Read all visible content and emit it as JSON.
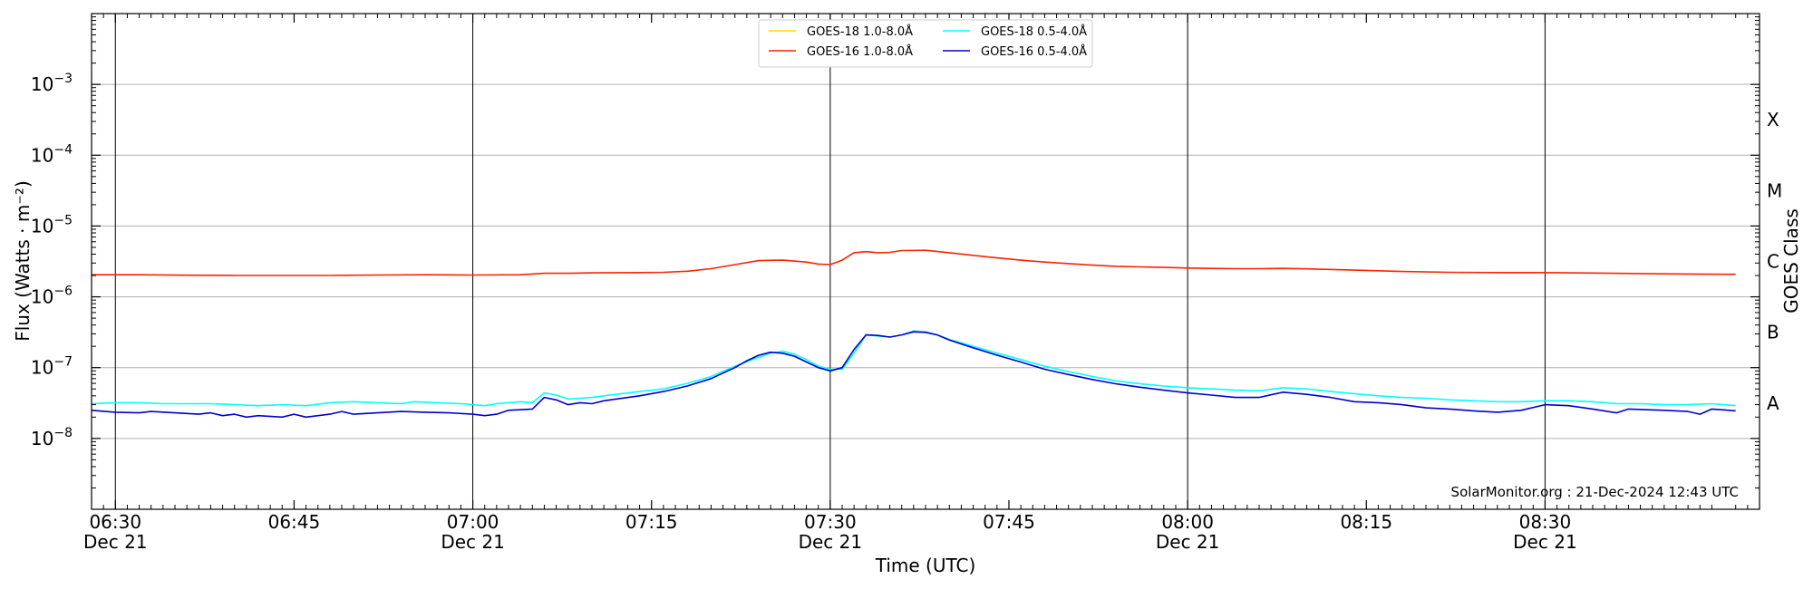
{
  "chart_data": {
    "type": "line",
    "title": "",
    "xlabel": "Time (UTC)",
    "ylabel": "Flux (Watts · m⁻²)",
    "ylabel_right": "GOES Class",
    "yscale": "log",
    "xlim": [
      "06:28",
      "08:48"
    ],
    "ylim": [
      1e-09,
      0.01
    ],
    "grid": "horizontal at decades",
    "legend_placement": "top-center",
    "credit": "SolarMonitor.org : 21-Dec-2024 12:43 UTC",
    "x_ticks": [
      {
        "time": "06:30",
        "label": "06:30",
        "sublabel": "Dec 21"
      },
      {
        "time": "06:45",
        "label": "06:45",
        "sublabel": ""
      },
      {
        "time": "07:00",
        "label": "07:00",
        "sublabel": "Dec 21"
      },
      {
        "time": "07:15",
        "label": "07:15",
        "sublabel": ""
      },
      {
        "time": "07:30",
        "label": "07:30",
        "sublabel": "Dec 21"
      },
      {
        "time": "07:45",
        "label": "07:45",
        "sublabel": ""
      },
      {
        "time": "08:00",
        "label": "08:00",
        "sublabel": "Dec 21"
      },
      {
        "time": "08:15",
        "label": "08:15",
        "sublabel": ""
      },
      {
        "time": "08:30",
        "label": "08:30",
        "sublabel": "Dec 21"
      }
    ],
    "vlines": [
      "06:30",
      "07:00",
      "07:30",
      "08:00",
      "08:30"
    ],
    "y_ticks": [
      {
        "value": 1e-08,
        "base": "10",
        "exp": "−8"
      },
      {
        "value": 1e-07,
        "base": "10",
        "exp": "−7"
      },
      {
        "value": 1e-06,
        "base": "10",
        "exp": "−6"
      },
      {
        "value": 1e-05,
        "base": "10",
        "exp": "−5"
      },
      {
        "value": 0.0001,
        "base": "10",
        "exp": "−4"
      },
      {
        "value": 0.001,
        "base": "10",
        "exp": "−3"
      }
    ],
    "goes_classes": [
      {
        "label": "A",
        "value": 3.16e-08
      },
      {
        "label": "B",
        "value": 3.16e-07
      },
      {
        "label": "C",
        "value": 3.16e-06
      },
      {
        "label": "M",
        "value": 3.16e-05
      },
      {
        "label": "X",
        "value": 0.000316
      }
    ],
    "series": [
      {
        "name": "GOES-18 1.0-8.0Å",
        "color": "#ffd700",
        "points": []
      },
      {
        "name": "GOES-18 0.5-4.0Å",
        "color": "#00ffff",
        "points": [
          [
            "06:28",
            3.1e-08
          ],
          [
            "06:30",
            3.2e-08
          ],
          [
            "06:32",
            3.2e-08
          ],
          [
            "06:34",
            3.1e-08
          ],
          [
            "06:36",
            3.1e-08
          ],
          [
            "06:38",
            3.1e-08
          ],
          [
            "06:40",
            3e-08
          ],
          [
            "06:42",
            2.9e-08
          ],
          [
            "06:44",
            3e-08
          ],
          [
            "06:46",
            2.9e-08
          ],
          [
            "06:48",
            3.2e-08
          ],
          [
            "06:50",
            3.3e-08
          ],
          [
            "06:52",
            3.2e-08
          ],
          [
            "06:54",
            3.1e-08
          ],
          [
            "06:55",
            3.3e-08
          ],
          [
            "06:57",
            3.2e-08
          ],
          [
            "06:59",
            3.1e-08
          ],
          [
            "07:00",
            3e-08
          ],
          [
            "07:01",
            2.9e-08
          ],
          [
            "07:02",
            3.1e-08
          ],
          [
            "07:04",
            3.3e-08
          ],
          [
            "07:05",
            3.2e-08
          ],
          [
            "07:06",
            4.4e-08
          ],
          [
            "07:07",
            4.1e-08
          ],
          [
            "07:08",
            3.6e-08
          ],
          [
            "07:10",
            3.8e-08
          ],
          [
            "07:12",
            4.2e-08
          ],
          [
            "07:14",
            4.6e-08
          ],
          [
            "07:16",
            5e-08
          ],
          [
            "07:18",
            6e-08
          ],
          [
            "07:20",
            7.5e-08
          ],
          [
            "07:22",
            1.05e-07
          ],
          [
            "07:24",
            1.4e-07
          ],
          [
            "07:25",
            1.6e-07
          ],
          [
            "07:26",
            1.7e-07
          ],
          [
            "07:27",
            1.55e-07
          ],
          [
            "07:28",
            1.3e-07
          ],
          [
            "07:29",
            1.05e-07
          ],
          [
            "07:30",
            9.5e-08
          ],
          [
            "07:31",
            9.5e-08
          ],
          [
            "07:32",
            1.6e-07
          ],
          [
            "07:33",
            2.9e-07
          ],
          [
            "07:34",
            2.8e-07
          ],
          [
            "07:35",
            2.7e-07
          ],
          [
            "07:36",
            2.9e-07
          ],
          [
            "07:37",
            3.3e-07
          ],
          [
            "07:38",
            3.2e-07
          ],
          [
            "07:39",
            2.9e-07
          ],
          [
            "07:40",
            2.5e-07
          ],
          [
            "07:42",
            2e-07
          ],
          [
            "07:44",
            1.6e-07
          ],
          [
            "07:46",
            1.3e-07
          ],
          [
            "07:48",
            1.05e-07
          ],
          [
            "07:50",
            8.8e-08
          ],
          [
            "07:52",
            7.5e-08
          ],
          [
            "07:54",
            6.5e-08
          ],
          [
            "07:56",
            5.9e-08
          ],
          [
            "07:58",
            5.5e-08
          ],
          [
            "08:00",
            5.2e-08
          ],
          [
            "08:02",
            5e-08
          ],
          [
            "08:04",
            4.8e-08
          ],
          [
            "08:06",
            4.7e-08
          ],
          [
            "08:08",
            5.2e-08
          ],
          [
            "08:10",
            5e-08
          ],
          [
            "08:12",
            4.6e-08
          ],
          [
            "08:14",
            4.3e-08
          ],
          [
            "08:16",
            4e-08
          ],
          [
            "08:18",
            3.8e-08
          ],
          [
            "08:20",
            3.7e-08
          ],
          [
            "08:22",
            3.5e-08
          ],
          [
            "08:24",
            3.4e-08
          ],
          [
            "08:26",
            3.3e-08
          ],
          [
            "08:28",
            3.3e-08
          ],
          [
            "08:30",
            3.4e-08
          ],
          [
            "08:32",
            3.4e-08
          ],
          [
            "08:34",
            3.3e-08
          ],
          [
            "08:36",
            3.1e-08
          ],
          [
            "08:38",
            3.1e-08
          ],
          [
            "08:40",
            3e-08
          ],
          [
            "08:42",
            3e-08
          ],
          [
            "08:44",
            3.1e-08
          ],
          [
            "08:46",
            2.9e-08
          ]
        ]
      },
      {
        "name": "GOES-16 1.0-8.0Å",
        "color": "#ff2200",
        "points": [
          [
            "06:28",
            2.05e-06
          ],
          [
            "06:32",
            2.05e-06
          ],
          [
            "06:36",
            2.02e-06
          ],
          [
            "06:40",
            2e-06
          ],
          [
            "06:44",
            2e-06
          ],
          [
            "06:48",
            2e-06
          ],
          [
            "06:52",
            2.03e-06
          ],
          [
            "06:56",
            2.05e-06
          ],
          [
            "07:00",
            2.03e-06
          ],
          [
            "07:04",
            2.05e-06
          ],
          [
            "07:06",
            2.15e-06
          ],
          [
            "07:08",
            2.15e-06
          ],
          [
            "07:10",
            2.18e-06
          ],
          [
            "07:14",
            2.2e-06
          ],
          [
            "07:16",
            2.22e-06
          ],
          [
            "07:18",
            2.3e-06
          ],
          [
            "07:20",
            2.5e-06
          ],
          [
            "07:22",
            2.85e-06
          ],
          [
            "07:24",
            3.25e-06
          ],
          [
            "07:26",
            3.3e-06
          ],
          [
            "07:28",
            3.1e-06
          ],
          [
            "07:29",
            2.9e-06
          ],
          [
            "07:30",
            2.85e-06
          ],
          [
            "07:31",
            3.3e-06
          ],
          [
            "07:32",
            4.2e-06
          ],
          [
            "07:33",
            4.35e-06
          ],
          [
            "07:34",
            4.2e-06
          ],
          [
            "07:35",
            4.25e-06
          ],
          [
            "07:36",
            4.5e-06
          ],
          [
            "07:38",
            4.55e-06
          ],
          [
            "07:40",
            4.2e-06
          ],
          [
            "07:42",
            3.85e-06
          ],
          [
            "07:44",
            3.55e-06
          ],
          [
            "07:46",
            3.3e-06
          ],
          [
            "07:48",
            3.1e-06
          ],
          [
            "07:50",
            2.95e-06
          ],
          [
            "07:52",
            2.8e-06
          ],
          [
            "07:54",
            2.7e-06
          ],
          [
            "07:56",
            2.65e-06
          ],
          [
            "07:58",
            2.6e-06
          ],
          [
            "08:00",
            2.55e-06
          ],
          [
            "08:02",
            2.52e-06
          ],
          [
            "08:04",
            2.5e-06
          ],
          [
            "08:06",
            2.5e-06
          ],
          [
            "08:08",
            2.52e-06
          ],
          [
            "08:10",
            2.48e-06
          ],
          [
            "08:14",
            2.38e-06
          ],
          [
            "08:18",
            2.28e-06
          ],
          [
            "08:22",
            2.22e-06
          ],
          [
            "08:26",
            2.2e-06
          ],
          [
            "08:30",
            2.2e-06
          ],
          [
            "08:34",
            2.17e-06
          ],
          [
            "08:38",
            2.13e-06
          ],
          [
            "08:42",
            2.1e-06
          ],
          [
            "08:46",
            2.08e-06
          ]
        ]
      },
      {
        "name": "GOES-16 0.5-4.0Å",
        "color": "#0000cd",
        "points": [
          [
            "06:28",
            2.5e-08
          ],
          [
            "06:30",
            2.35e-08
          ],
          [
            "06:32",
            2.3e-08
          ],
          [
            "06:33",
            2.4e-08
          ],
          [
            "06:35",
            2.3e-08
          ],
          [
            "06:37",
            2.2e-08
          ],
          [
            "06:38",
            2.3e-08
          ],
          [
            "06:39",
            2.1e-08
          ],
          [
            "06:40",
            2.2e-08
          ],
          [
            "06:41",
            2e-08
          ],
          [
            "06:42",
            2.1e-08
          ],
          [
            "06:44",
            2e-08
          ],
          [
            "06:45",
            2.2e-08
          ],
          [
            "06:46",
            2e-08
          ],
          [
            "06:48",
            2.2e-08
          ],
          [
            "06:49",
            2.4e-08
          ],
          [
            "06:50",
            2.2e-08
          ],
          [
            "06:52",
            2.3e-08
          ],
          [
            "06:54",
            2.4e-08
          ],
          [
            "06:56",
            2.35e-08
          ],
          [
            "06:58",
            2.3e-08
          ],
          [
            "07:00",
            2.2e-08
          ],
          [
            "07:01",
            2.1e-08
          ],
          [
            "07:02",
            2.2e-08
          ],
          [
            "07:03",
            2.5e-08
          ],
          [
            "07:05",
            2.6e-08
          ],
          [
            "07:06",
            3.8e-08
          ],
          [
            "07:07",
            3.5e-08
          ],
          [
            "07:08",
            3e-08
          ],
          [
            "07:09",
            3.2e-08
          ],
          [
            "07:10",
            3.1e-08
          ],
          [
            "07:11",
            3.4e-08
          ],
          [
            "07:12",
            3.6e-08
          ],
          [
            "07:14",
            4e-08
          ],
          [
            "07:16",
            4.6e-08
          ],
          [
            "07:18",
            5.5e-08
          ],
          [
            "07:20",
            7e-08
          ],
          [
            "07:22",
            1e-07
          ],
          [
            "07:23",
            1.25e-07
          ],
          [
            "07:24",
            1.5e-07
          ],
          [
            "07:25",
            1.65e-07
          ],
          [
            "07:26",
            1.6e-07
          ],
          [
            "07:27",
            1.45e-07
          ],
          [
            "07:28",
            1.2e-07
          ],
          [
            "07:29",
            1e-07
          ],
          [
            "07:30",
            9e-08
          ],
          [
            "07:31",
            1e-07
          ],
          [
            "07:32",
            1.8e-07
          ],
          [
            "07:33",
            2.9e-07
          ],
          [
            "07:34",
            2.85e-07
          ],
          [
            "07:35",
            2.7e-07
          ],
          [
            "07:36",
            2.9e-07
          ],
          [
            "07:37",
            3.2e-07
          ],
          [
            "07:38",
            3.15e-07
          ],
          [
            "07:39",
            2.9e-07
          ],
          [
            "07:40",
            2.45e-07
          ],
          [
            "07:42",
            1.9e-07
          ],
          [
            "07:44",
            1.5e-07
          ],
          [
            "07:46",
            1.2e-07
          ],
          [
            "07:48",
            9.5e-08
          ],
          [
            "07:50",
            8e-08
          ],
          [
            "07:52",
            6.8e-08
          ],
          [
            "07:54",
            5.9e-08
          ],
          [
            "07:56",
            5.3e-08
          ],
          [
            "07:58",
            4.8e-08
          ],
          [
            "08:00",
            4.4e-08
          ],
          [
            "08:02",
            4.1e-08
          ],
          [
            "08:04",
            3.8e-08
          ],
          [
            "08:06",
            3.8e-08
          ],
          [
            "08:08",
            4.5e-08
          ],
          [
            "08:10",
            4.2e-08
          ],
          [
            "08:12",
            3.8e-08
          ],
          [
            "08:14",
            3.3e-08
          ],
          [
            "08:16",
            3.2e-08
          ],
          [
            "08:18",
            3e-08
          ],
          [
            "08:20",
            2.7e-08
          ],
          [
            "08:22",
            2.6e-08
          ],
          [
            "08:24",
            2.45e-08
          ],
          [
            "08:26",
            2.35e-08
          ],
          [
            "08:28",
            2.5e-08
          ],
          [
            "08:30",
            3e-08
          ],
          [
            "08:32",
            2.9e-08
          ],
          [
            "08:34",
            2.6e-08
          ],
          [
            "08:36",
            2.3e-08
          ],
          [
            "08:37",
            2.6e-08
          ],
          [
            "08:40",
            2.5e-08
          ],
          [
            "08:42",
            2.4e-08
          ],
          [
            "08:43",
            2.2e-08
          ],
          [
            "08:44",
            2.6e-08
          ],
          [
            "08:46",
            2.45e-08
          ]
        ]
      }
    ],
    "legend_order": [
      0,
      2,
      1,
      3
    ]
  }
}
